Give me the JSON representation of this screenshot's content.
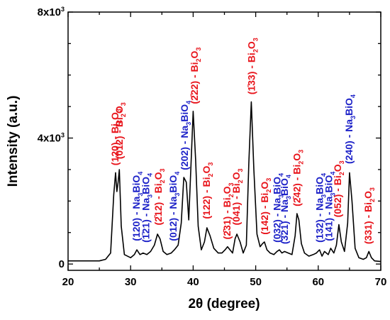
{
  "chart_data": {
    "type": "line",
    "xlabel": "2θ (degree)",
    "ylabel": "Intensity (a.u.)",
    "xlim": [
      20,
      70
    ],
    "ylim": [
      -200,
      8000
    ],
    "x_ticks": [
      "20",
      "30",
      "40",
      "50",
      "60",
      "70"
    ],
    "y_ticks": [
      {
        "value": 0,
        "label": "0"
      },
      {
        "value": 4000,
        "label": "4x10",
        "sup": "3"
      },
      {
        "value": 8000,
        "label": "8x10",
        "sup": "3"
      }
    ],
    "grid": false,
    "colors": {
      "bi2o3": "#e8141b",
      "na3bio4": "#1d22c8",
      "line": "#000000"
    },
    "series": [
      {
        "x": [
          20,
          25,
          26,
          26.8,
          27.3,
          27.6,
          27.8,
          28.0,
          28.2,
          28.5,
          29.0,
          30.0,
          30.6,
          31.0,
          31.5,
          32.0,
          32.6,
          33.2,
          33.8,
          34.3,
          34.7,
          35.2,
          35.8,
          36.5,
          37.0,
          37.6,
          38.1,
          38.5,
          38.9,
          39.3,
          39.7,
          40.0,
          40.4,
          40.8,
          41.3,
          41.8,
          42.2,
          42.7,
          43.3,
          44.0,
          44.6,
          45.1,
          45.5,
          45.9,
          46.3,
          46.7,
          47.0,
          47.5,
          48.0,
          48.5,
          48.9,
          49.3,
          49.7,
          50.2,
          50.7,
          51.1,
          51.4,
          51.8,
          52.3,
          52.9,
          53.4,
          53.8,
          54.2,
          54.6,
          55.2,
          55.8,
          56.3,
          56.6,
          56.9,
          57.3,
          57.8,
          58.5,
          59.2,
          59.7,
          60.2,
          60.6,
          61.0,
          61.3,
          61.6,
          62.0,
          62.5,
          62.9,
          63.3,
          63.7,
          64.2,
          64.7,
          65.0,
          65.4,
          65.9,
          66.5,
          67.2,
          67.7,
          68.1,
          68.5,
          69.0,
          70.0
        ],
        "y": [
          100,
          100,
          150,
          350,
          2200,
          2900,
          2300,
          2600,
          3000,
          1200,
          300,
          200,
          300,
          450,
          300,
          350,
          300,
          400,
          600,
          950,
          800,
          400,
          300,
          350,
          450,
          600,
          1300,
          2750,
          2600,
          1400,
          3400,
          4850,
          3300,
          1200,
          450,
          700,
          1150,
          900,
          500,
          350,
          350,
          450,
          550,
          450,
          350,
          800,
          950,
          700,
          350,
          600,
          3200,
          5150,
          3000,
          950,
          550,
          650,
          700,
          450,
          350,
          300,
          400,
          450,
          350,
          400,
          350,
          300,
          900,
          1600,
          1400,
          650,
          350,
          250,
          300,
          350,
          450,
          250,
          400,
          350,
          300,
          500,
          350,
          600,
          1250,
          700,
          400,
          1300,
          2900,
          2000,
          500,
          200,
          150,
          200,
          400,
          200,
          100,
          80
        ]
      }
    ],
    "annotations": [
      {
        "x": 27.6,
        "y": 2950,
        "miller": "(120)",
        "phase": "Bi2O3",
        "color": "red"
      },
      {
        "x": 28.3,
        "y": 3150,
        "miller": "(012)",
        "phase": "Bi2O3",
        "color": "red"
      },
      {
        "x": 31.0,
        "y": 550,
        "miller": "(120)",
        "phase": "Na3BiO4",
        "color": "blue"
      },
      {
        "x": 32.5,
        "y": 500,
        "miller": "(1̄21)",
        "phase": "Na3BiO4",
        "color": "blue"
      },
      {
        "x": 34.5,
        "y": 1050,
        "miller": "(2̄12)",
        "phase": "Bi2O3",
        "color": "red"
      },
      {
        "x": 36.9,
        "y": 550,
        "miller": "(012)",
        "phase": "Na3BiO4",
        "color": "blue"
      },
      {
        "x": 38.7,
        "y": 2800,
        "miller": "(202)",
        "phase": "Na3BiO4",
        "color": "blue"
      },
      {
        "x": 40.3,
        "y": 4900,
        "miller": "(2̄22)",
        "phase": "Bi2O3",
        "color": "red"
      },
      {
        "x": 42.2,
        "y": 1250,
        "miller": "(122)",
        "phase": "Bi2O3",
        "color": "red"
      },
      {
        "x": 45.5,
        "y": 600,
        "miller": "(2̄31)",
        "phase": "Bi2O3",
        "color": "red"
      },
      {
        "x": 47.0,
        "y": 1050,
        "miller": "(041)",
        "phase": "Bi2O3",
        "color": "red"
      },
      {
        "x": 49.4,
        "y": 5200,
        "miller": "(1̄33)",
        "phase": "Bi2O3",
        "color": "red"
      },
      {
        "x": 51.5,
        "y": 750,
        "miller": "(142)",
        "phase": "Bi2O3",
        "color": "red"
      },
      {
        "x": 53.5,
        "y": 500,
        "miller": "(032)",
        "phase": "Na3BiO4",
        "color": "blue"
      },
      {
        "x": 54.7,
        "y": 450,
        "miller": "(3̄21)",
        "phase": "Na3BiO4",
        "color": "blue"
      },
      {
        "x": 56.7,
        "y": 1650,
        "miller": "(2̄42)",
        "phase": "Bi2O3",
        "color": "red"
      },
      {
        "x": 60.3,
        "y": 500,
        "miller": "(132)",
        "phase": "Na3BiO4",
        "color": "blue"
      },
      {
        "x": 61.8,
        "y": 550,
        "miller": "(141)",
        "phase": "Na3BiO4",
        "color": "blue"
      },
      {
        "x": 63.2,
        "y": 1300,
        "miller": "(052)",
        "phase": "Bi2O3",
        "color": "red"
      },
      {
        "x": 65.0,
        "y": 3000,
        "miller": "(240)",
        "phase": "Na3BiO4",
        "color": "blue"
      },
      {
        "x": 68.1,
        "y": 450,
        "miller": "(331)",
        "phase": "Bi2O3",
        "color": "red"
      }
    ]
  }
}
